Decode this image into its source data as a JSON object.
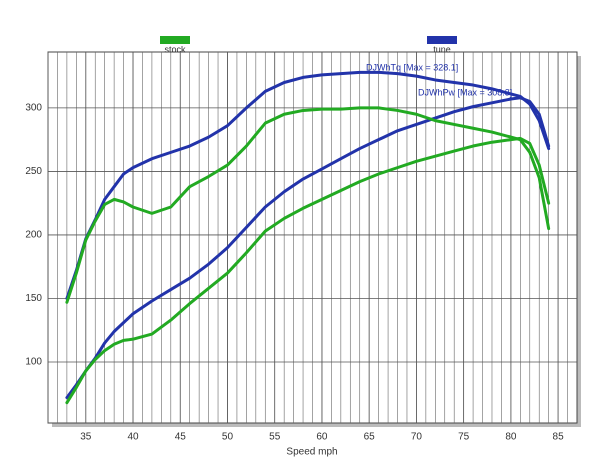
{
  "chart_data": {
    "type": "line",
    "x_label": "Speed   mph",
    "legend": [
      {
        "name": "stock",
        "color": "#22aa22"
      },
      {
        "name": "tune",
        "color": "#2233aa"
      }
    ],
    "annotations": [
      "DJWhTq [Max = 328.1]",
      "DJWhPw [Max = 308.3]"
    ],
    "x": [
      33,
      34,
      35,
      36,
      37,
      38,
      39,
      40,
      42,
      44,
      46,
      48,
      50,
      52,
      54,
      56,
      58,
      60,
      62,
      64,
      66,
      68,
      70,
      72,
      74,
      76,
      78,
      80,
      81,
      82,
      83,
      84
    ],
    "series": [
      {
        "color": "#2233aa",
        "values": [
          150,
          172,
          197,
          212,
          228,
          238,
          248,
          253,
          260,
          265,
          270,
          277,
          286,
          300,
          313,
          320,
          324,
          326,
          327,
          328,
          328,
          327,
          325,
          322,
          320,
          318,
          315,
          311,
          309,
          303,
          290,
          268
        ]
      },
      {
        "color": "#2233aa",
        "values": [
          72,
          82,
          93,
          103,
          115,
          124,
          131,
          138,
          148,
          157,
          166,
          177,
          190,
          206,
          222,
          234,
          244,
          252,
          260,
          268,
          275,
          282,
          287,
          292,
          297,
          301,
          304,
          307,
          308,
          305,
          295,
          270
        ]
      },
      {
        "color": "#22aa22",
        "values": [
          147,
          170,
          196,
          211,
          224,
          228,
          226,
          222,
          217,
          222,
          238,
          246,
          255,
          270,
          288,
          295,
          298,
          299,
          299,
          300,
          300,
          298,
          295,
          290,
          287,
          284,
          281,
          277,
          275,
          265,
          245,
          205
        ]
      },
      {
        "color": "#22aa22",
        "values": [
          68,
          80,
          93,
          102,
          109,
          114,
          117,
          118,
          122,
          133,
          146,
          158,
          170,
          186,
          203,
          213,
          221,
          228,
          235,
          242,
          248,
          253,
          258,
          262,
          266,
          270,
          273,
          275,
          276,
          272,
          255,
          225
        ]
      }
    ],
    "xlim": [
      31,
      87
    ],
    "xticks": [
      35,
      40,
      45,
      50,
      55,
      60,
      65,
      70,
      75,
      80,
      85
    ],
    "xminor": 1,
    "ylim": [
      52,
      344
    ],
    "yticks": [
      100,
      150,
      200,
      250,
      300
    ],
    "grid": true
  }
}
